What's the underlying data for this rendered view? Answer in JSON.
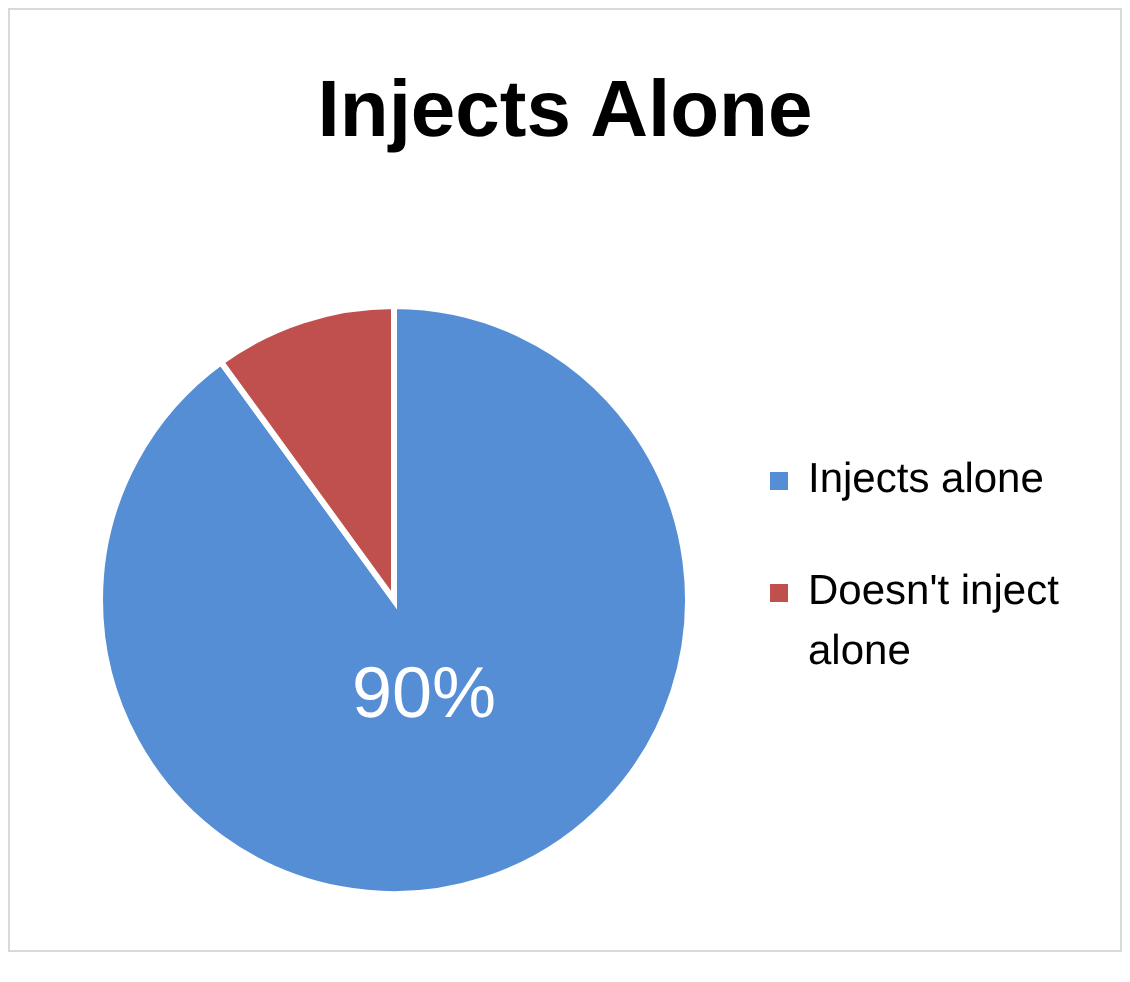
{
  "chart_data": {
    "type": "pie",
    "title": "Injects Alone",
    "categories": [
      "Injects alone",
      "Doesn't inject alone"
    ],
    "values": [
      90,
      10
    ],
    "colors": [
      "#558ed5",
      "#c0504d"
    ],
    "value_labels": [
      "90%",
      null
    ],
    "legend": "right"
  }
}
